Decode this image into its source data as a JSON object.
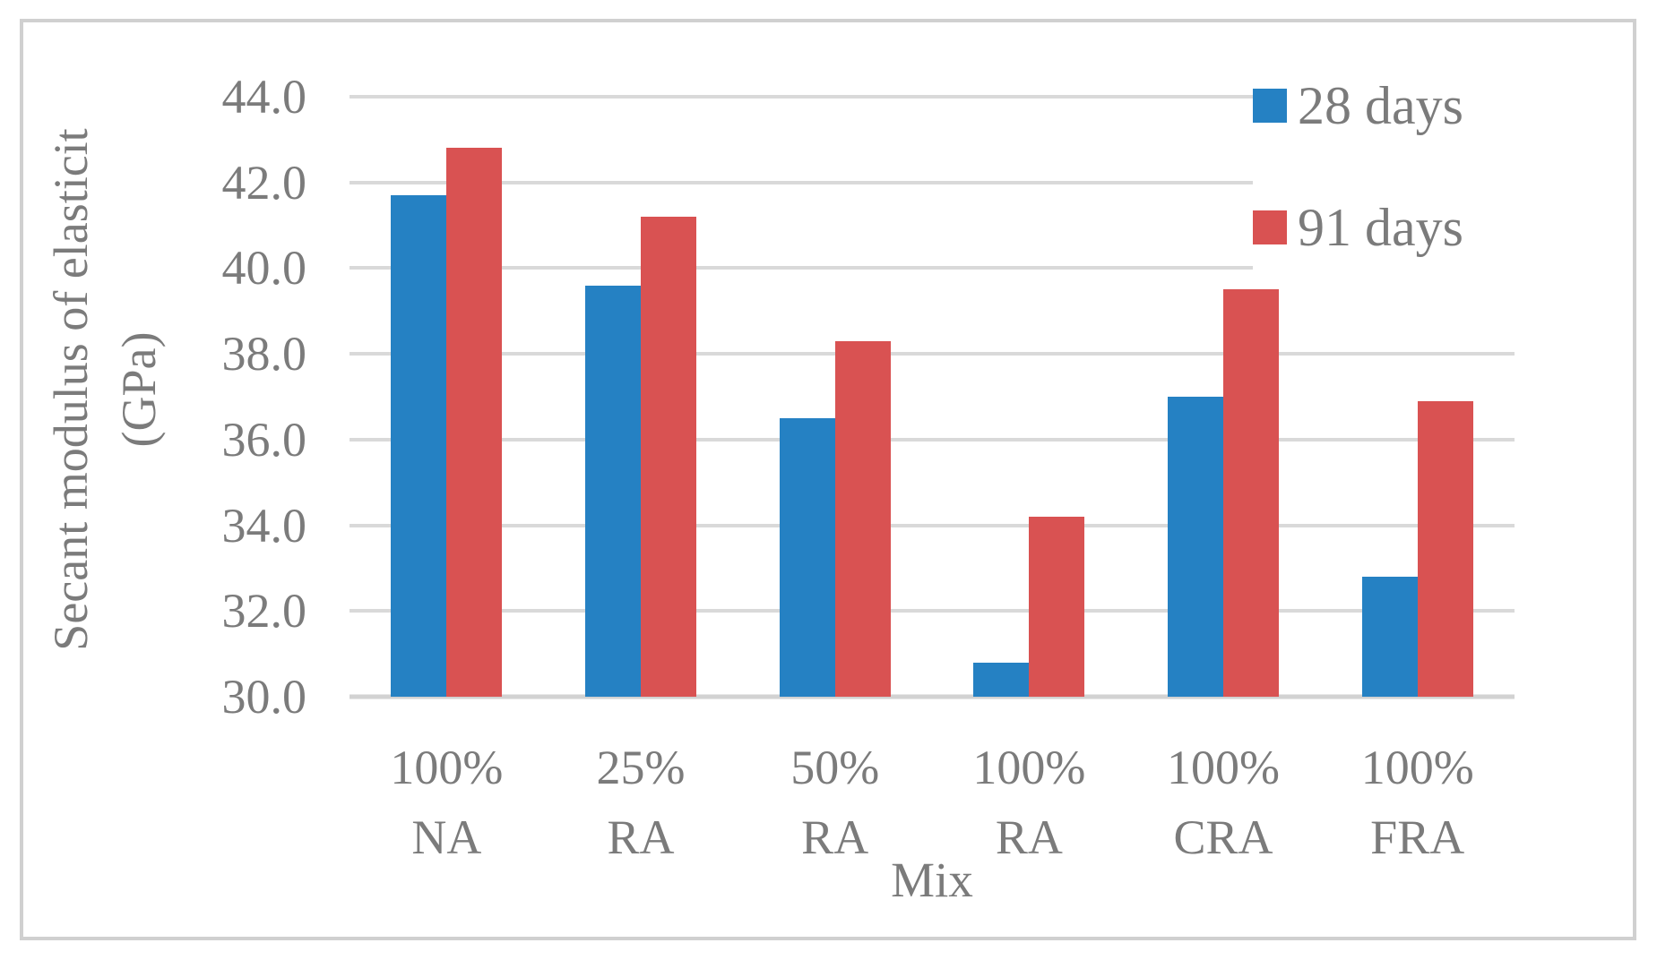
{
  "figure": {
    "background": "#ffffff",
    "frame_border_color": "#d0d0d0"
  },
  "chart_data": {
    "type": "bar",
    "title": "",
    "xlabel": "Mix",
    "ylabel_line1": "Secant modulus of elasticit",
    "ylabel_line2": "(GPa)",
    "categories": [
      "100% NA",
      "25% RA",
      "50% RA",
      "100% RA",
      "100% CRA",
      "100% FRA"
    ],
    "series": [
      {
        "name": "28 days",
        "color": "#2581c3",
        "values": [
          41.7,
          39.6,
          36.5,
          30.8,
          37.0,
          32.8
        ]
      },
      {
        "name": "91 days",
        "color": "#d95252",
        "values": [
          42.8,
          41.2,
          38.3,
          34.2,
          39.5,
          36.9
        ]
      }
    ],
    "ylim": [
      30.0,
      44.0
    ],
    "ytick_step": 2.0,
    "yticks": [
      "44.0",
      "42.0",
      "40.0",
      "38.0",
      "36.0",
      "34.0",
      "32.0",
      "30.0"
    ],
    "grid": true,
    "grid_color": "#d9d9d9",
    "text_color": "#7b7b7b",
    "legend_position": "top-right"
  }
}
